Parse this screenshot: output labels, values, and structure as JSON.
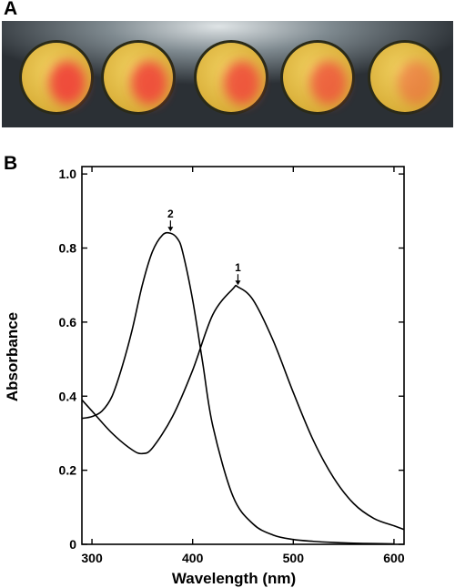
{
  "panels": {
    "a_label": "A",
    "b_label": "B"
  },
  "photo": {
    "background": "#2b3035",
    "glow": "#dfe4e6",
    "disc_fill": "#e6c34a",
    "disc_rim": "#2a2a18",
    "spot_color": "#f0463a",
    "spot_strength": [
      0.95,
      0.9,
      0.85,
      0.75,
      0.45
    ]
  },
  "chart_data": {
    "type": "line",
    "xlabel": "Wavelength (nm)",
    "ylabel": "Absorbance",
    "xlim": [
      290,
      610
    ],
    "ylim": [
      0,
      1.02
    ],
    "xticks": [
      300,
      400,
      500,
      600
    ],
    "yticks": [
      0,
      0.2,
      0.4,
      0.6,
      0.8,
      1.0
    ],
    "ytick_labels": [
      "0",
      "0.2",
      "0.4",
      "0.6",
      "0.8",
      "1.0"
    ],
    "grid": false,
    "series": [
      {
        "name": "1",
        "x": [
          290,
          300,
          320,
          340,
          350,
          360,
          380,
          400,
          420,
          440,
          445,
          460,
          480,
          500,
          520,
          540,
          560,
          580,
          600,
          610
        ],
        "y": [
          0.39,
          0.36,
          0.3,
          0.255,
          0.245,
          0.26,
          0.345,
          0.47,
          0.62,
          0.69,
          0.695,
          0.66,
          0.55,
          0.41,
          0.28,
          0.18,
          0.11,
          0.07,
          0.05,
          0.04
        ]
      },
      {
        "name": "2",
        "x": [
          290,
          300,
          310,
          320,
          330,
          340,
          350,
          360,
          370,
          378,
          385,
          390,
          400,
          410,
          420,
          440,
          460,
          480,
          500,
          520,
          540,
          560,
          580,
          600
        ],
        "y": [
          0.34,
          0.345,
          0.36,
          0.4,
          0.48,
          0.58,
          0.7,
          0.79,
          0.835,
          0.84,
          0.825,
          0.79,
          0.66,
          0.49,
          0.32,
          0.13,
          0.055,
          0.025,
          0.013,
          0.008,
          0.005,
          0.003,
          0.002,
          0.001
        ]
      }
    ],
    "annotations": [
      {
        "text": "1",
        "x": 445,
        "y": 0.695
      },
      {
        "text": "2",
        "x": 378,
        "y": 0.84
      }
    ],
    "line_color": "#000000"
  }
}
